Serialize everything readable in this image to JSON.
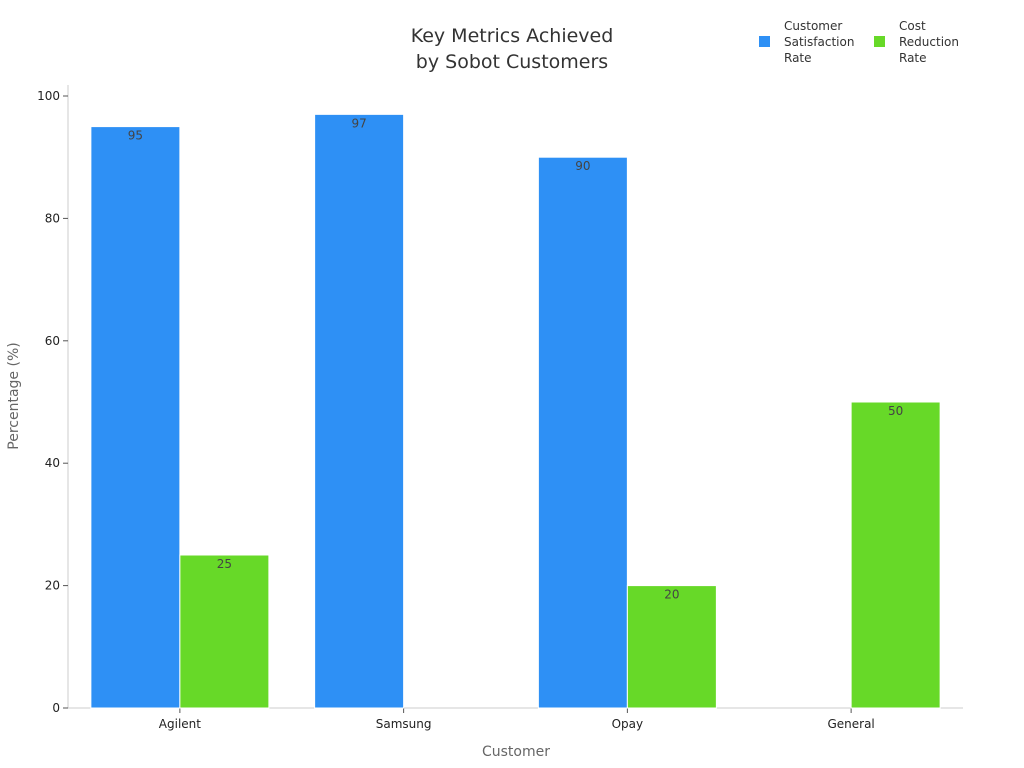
{
  "chart_data": {
    "type": "bar",
    "title_lines": [
      "Key Metrics Achieved",
      "by Sobot Customers"
    ],
    "xlabel": "Customer",
    "ylabel": "Percentage (%)",
    "categories": [
      "Agilent",
      "Samsung",
      "Opay",
      "General"
    ],
    "series": [
      {
        "name_lines": [
          "Customer",
          "Satisfaction",
          "Rate"
        ],
        "color": "#2E90F5",
        "values": [
          95,
          97,
          90,
          null
        ]
      },
      {
        "name_lines": [
          "Cost",
          "Reduction",
          "Rate"
        ],
        "color": "#67D928",
        "values": [
          25,
          null,
          20,
          50
        ]
      }
    ],
    "ylim": [
      0,
      100
    ],
    "yticks": [
      0,
      20,
      40,
      60,
      80,
      100
    ],
    "grid": false,
    "legend_position": "top-right"
  }
}
